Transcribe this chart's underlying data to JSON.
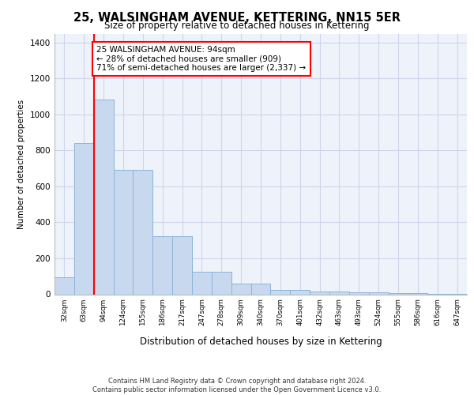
{
  "title": "25, WALSINGHAM AVENUE, KETTERING, NN15 5ER",
  "subtitle": "Size of property relative to detached houses in Kettering",
  "xlabel": "Distribution of detached houses by size in Kettering",
  "ylabel": "Number of detached properties",
  "categories": [
    "32sqm",
    "63sqm",
    "94sqm",
    "124sqm",
    "155sqm",
    "186sqm",
    "217sqm",
    "247sqm",
    "278sqm",
    "309sqm",
    "340sqm",
    "370sqm",
    "401sqm",
    "432sqm",
    "463sqm",
    "493sqm",
    "524sqm",
    "555sqm",
    "586sqm",
    "616sqm",
    "647sqm"
  ],
  "values": [
    95,
    840,
    1085,
    690,
    690,
    325,
    325,
    125,
    125,
    60,
    60,
    25,
    25,
    15,
    15,
    10,
    10,
    5,
    5,
    3,
    3
  ],
  "bar_color": "#c8d9ef",
  "bar_edge_color": "#8ab4d8",
  "redline_index": 2,
  "annotation_text": "25 WALSINGHAM AVENUE: 94sqm\n← 28% of detached houses are smaller (909)\n71% of semi-detached houses are larger (2,337) →",
  "annotation_box_color": "white",
  "annotation_box_edge": "red",
  "footer": "Contains HM Land Registry data © Crown copyright and database right 2024.\nContains public sector information licensed under the Open Government Licence v3.0.",
  "ylim": [
    0,
    1450
  ],
  "yticks": [
    0,
    200,
    400,
    600,
    800,
    1000,
    1200,
    1400
  ],
  "bg_color": "#eef2fb",
  "grid_color": "#cdd5e8"
}
